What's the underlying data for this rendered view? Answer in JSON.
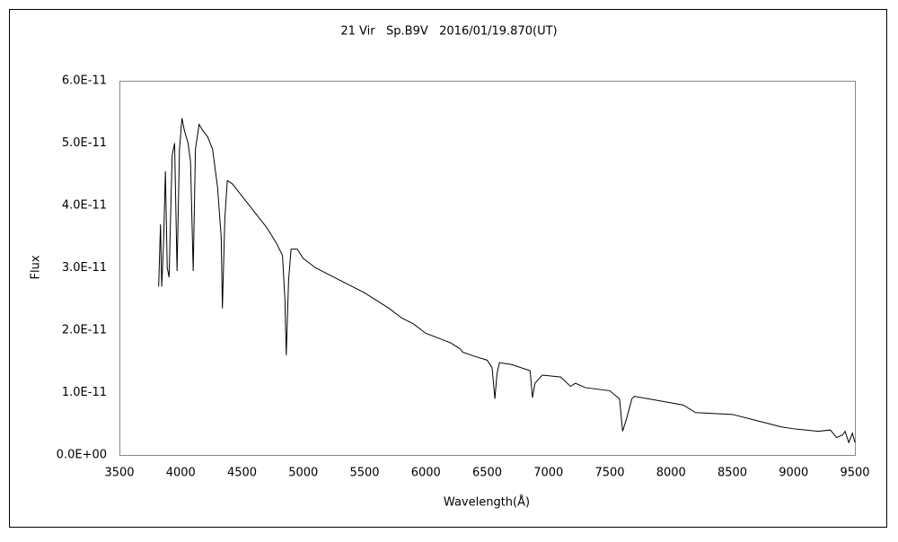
{
  "chart_data": {
    "type": "line",
    "title": "21 Vir   Sp.B9V   2016/01/19.870(UT)",
    "x_label": "Wavelength(Å)",
    "y_label": "Flux",
    "color": "#000000",
    "x": [
      3820,
      3835,
      3845,
      3860,
      3875,
      3890,
      3905,
      3930,
      3950,
      3970,
      3990,
      4010,
      4030,
      4060,
      4080,
      4102,
      4120,
      4150,
      4180,
      4220,
      4260,
      4300,
      4330,
      4340,
      4360,
      4380,
      4420,
      4500,
      4600,
      4700,
      4780,
      4830,
      4850,
      4861,
      4880,
      4900,
      4950,
      5000,
      5100,
      5200,
      5300,
      5500,
      5700,
      5800,
      5900,
      6000,
      6200,
      6280,
      6300,
      6400,
      6500,
      6540,
      6563,
      6580,
      6600,
      6700,
      6850,
      6870,
      6890,
      6950,
      7100,
      7180,
      7220,
      7300,
      7500,
      7580,
      7605,
      7640,
      7680,
      7700,
      7900,
      8100,
      8200,
      8500,
      8700,
      8900,
      9000,
      9200,
      9300,
      9350,
      9400,
      9420,
      9450,
      9480,
      9500
    ],
    "values": [
      2.7e-11,
      3.7e-11,
      2.7e-11,
      3.4e-11,
      4.55e-11,
      3e-11,
      2.85e-11,
      4.8e-11,
      5e-11,
      2.95e-11,
      4.9e-11,
      5.4e-11,
      5.2e-11,
      5e-11,
      4.7e-11,
      2.95e-11,
      4.9e-11,
      5.3e-11,
      5.2e-11,
      5.1e-11,
      4.9e-11,
      4.3e-11,
      3.5e-11,
      2.35e-11,
      3.8e-11,
      4.4e-11,
      4.35e-11,
      4.15e-11,
      3.9e-11,
      3.65e-11,
      3.4e-11,
      3.2e-11,
      2.5e-11,
      1.6e-11,
      2.8e-11,
      3.3e-11,
      3.3e-11,
      3.15e-11,
      3e-11,
      2.9e-11,
      2.8e-11,
      2.6e-11,
      2.35e-11,
      2.2e-11,
      2.1e-11,
      1.95e-11,
      1.8e-11,
      1.7e-11,
      1.65e-11,
      1.58e-11,
      1.52e-11,
      1.4e-11,
      9e-12,
      1.3e-11,
      1.48e-11,
      1.45e-11,
      1.35e-11,
      9.2e-12,
      1.15e-11,
      1.28e-11,
      1.25e-11,
      1.1e-11,
      1.15e-11,
      1.08e-11,
      1.03e-11,
      9e-12,
      3.8e-12,
      6e-12,
      9e-12,
      9.4e-12,
      8.7e-12,
      8e-12,
      6.8e-12,
      6.5e-12,
      5.5e-12,
      4.5e-12,
      4.2e-12,
      3.8e-12,
      4e-12,
      2.8e-12,
      3.2e-12,
      3.8e-12,
      2e-12,
      3.5e-12,
      2e-12
    ],
    "xlim": [
      3500,
      9500
    ],
    "xticks": [
      3500,
      4000,
      4500,
      5000,
      5500,
      6000,
      6500,
      7000,
      7500,
      8000,
      8500,
      9000,
      9500
    ],
    "ylim": [
      0,
      6e-11
    ],
    "yticks": [
      {
        "value": 0,
        "label": "0.0E+00"
      },
      {
        "value": 1e-11,
        "label": "1.0E-11"
      },
      {
        "value": 2e-11,
        "label": "2.0E-11"
      },
      {
        "value": 3e-11,
        "label": "3.0E-11"
      },
      {
        "value": 4e-11,
        "label": "4.0E-11"
      },
      {
        "value": 5e-11,
        "label": "5.0E-11"
      },
      {
        "value": 6e-11,
        "label": "6.0E-11"
      }
    ]
  }
}
